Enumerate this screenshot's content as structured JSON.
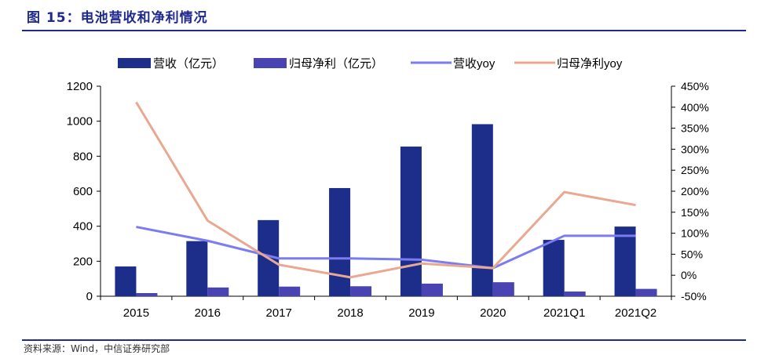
{
  "figure": {
    "title": "图 15：电池营收和净利情况",
    "source_note": "资料来源：Wind，中信证券研究部"
  },
  "colors": {
    "title": "#1f2a8c",
    "revenue_bar": "#1c2d8a",
    "netprofit_bar": "#4a44b3",
    "revenue_yoy_line": "#7b7cf0",
    "netprofit_yoy_line": "#e8a891",
    "axis": "#000000"
  },
  "chart_data": {
    "type": "bar",
    "categories": [
      "2015",
      "2016",
      "2017",
      "2018",
      "2019",
      "2020",
      "2021Q1",
      "2021Q2"
    ],
    "series": [
      {
        "name": "营收（亿元）",
        "kind": "bar",
        "axis": "left",
        "values": [
          170,
          315,
          435,
          618,
          855,
          983,
          322,
          398
        ]
      },
      {
        "name": "归母净利（亿元）",
        "kind": "bar",
        "axis": "left",
        "values": [
          18,
          50,
          55,
          57,
          72,
          80,
          27,
          42
        ]
      },
      {
        "name": "营收yoy",
        "kind": "line",
        "axis": "right",
        "values": [
          1.15,
          0.82,
          0.4,
          0.4,
          0.37,
          0.17,
          0.94,
          0.94
        ]
      },
      {
        "name": "归母净利yoy",
        "kind": "line",
        "axis": "right",
        "values": [
          4.12,
          1.3,
          0.25,
          -0.05,
          0.28,
          0.17,
          1.98,
          1.67
        ]
      }
    ],
    "left_axis": {
      "ylim": [
        0,
        1200
      ],
      "ticks": [
        "0",
        "200",
        "400",
        "600",
        "800",
        "1000",
        "1200"
      ]
    },
    "right_axis": {
      "ylim": [
        -0.5,
        4.5
      ],
      "ticks": [
        "-50%",
        "0%",
        "50%",
        "100%",
        "150%",
        "200%",
        "250%",
        "300%",
        "350%",
        "400%",
        "450%"
      ]
    },
    "grid": false,
    "legend_position": "top"
  }
}
